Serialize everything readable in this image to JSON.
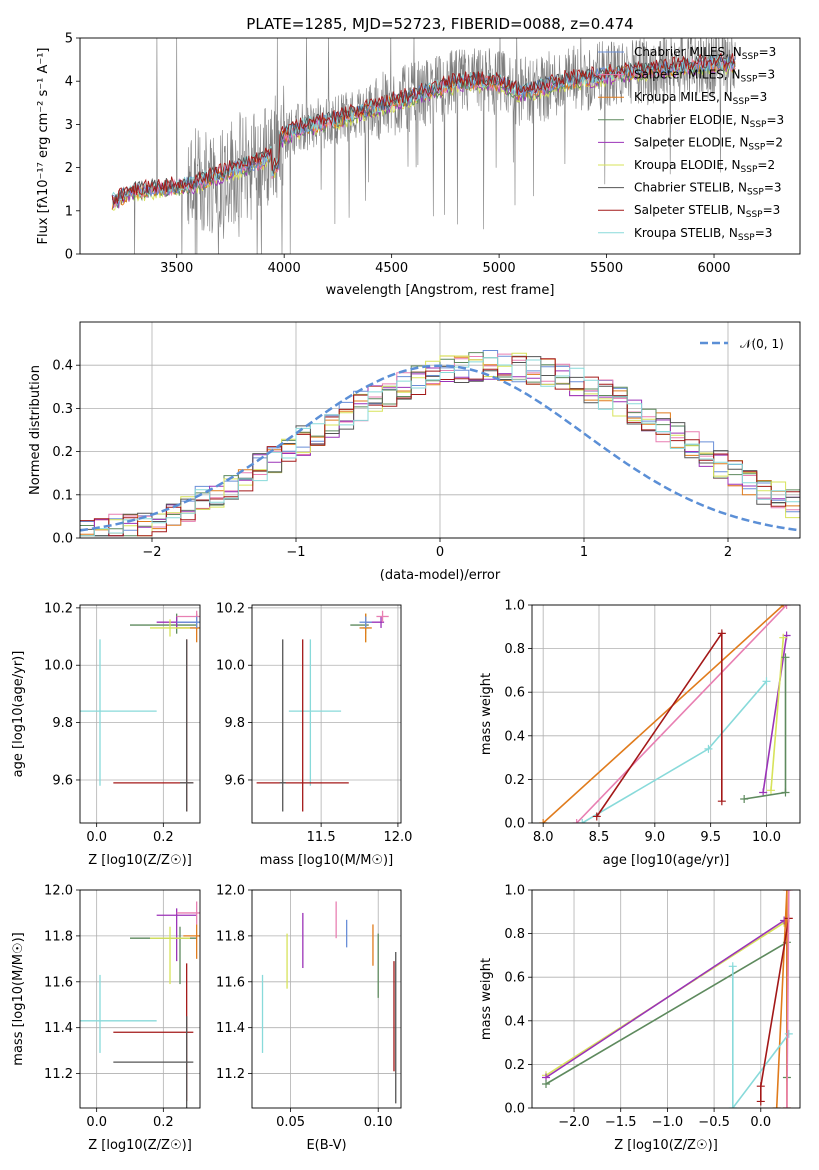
{
  "colors": {
    "chabrier_miles": "#6a8fd8",
    "salpeter_miles": "#e87fb2",
    "kroupa_miles": "#e07b1c",
    "chabrier_elodie": "#5e8a5e",
    "salpeter_elodie": "#9b33b8",
    "kroupa_elodie": "#d7e35a",
    "chabrier_stelib": "#555555",
    "salpeter_stelib": "#a31818",
    "kroupa_stelib": "#88dada",
    "normal": "#5b8fd6",
    "data": "#7f7f7f"
  },
  "chart_data": [
    {
      "id": "spectrum",
      "type": "line",
      "title": "PLATE=1285, MJD=52723, FIBERID=0088, z=0.474",
      "xlabel": "wavelength [Angstrom, rest frame]",
      "ylabel": "Flux [f$_\\lambda$10$^{-17}$ erg cm$^{-2}$ s$^{-1}$ A$^{-1}$]",
      "ylabel_text": "Flux [fλ10⁻¹⁷ erg cm⁻² s⁻¹ A⁻¹]",
      "xlim": [
        3050,
        6400
      ],
      "ylim": [
        0,
        5
      ],
      "xticks": [
        3500,
        4000,
        4500,
        5000,
        5500,
        6000
      ],
      "yticks": [
        0,
        1,
        2,
        3,
        4,
        5
      ],
      "grid": false,
      "legend_position": "top-right",
      "legend": [
        {
          "key": "chabrier_miles",
          "label": "Chabrier MILES, N",
          "sub": "SSP",
          "tail": "=3"
        },
        {
          "key": "salpeter_miles",
          "label": "Salpeter MILES, N",
          "sub": "SSP",
          "tail": "=3"
        },
        {
          "key": "kroupa_miles",
          "label": "Kroupa MILES, N",
          "sub": "SSP",
          "tail": "=3"
        },
        {
          "key": "chabrier_elodie",
          "label": "Chabrier ELODIE, N",
          "sub": "SSP",
          "tail": "=3"
        },
        {
          "key": "salpeter_elodie",
          "label": "Salpeter ELODIE, N",
          "sub": "SSP",
          "tail": "=2"
        },
        {
          "key": "kroupa_elodie",
          "label": "Kroupa ELODIE, N",
          "sub": "SSP",
          "tail": "=2"
        },
        {
          "key": "chabrier_stelib",
          "label": "Chabrier STELIB, N",
          "sub": "SSP",
          "tail": "=3"
        },
        {
          "key": "salpeter_stelib",
          "label": "Salpeter STELIB, N",
          "sub": "SSP",
          "tail": "=3"
        },
        {
          "key": "kroupa_stelib",
          "label": "Kroupa STELIB, N",
          "sub": "SSP",
          "tail": "=3"
        }
      ],
      "model_continuum": [
        [
          3200,
          1.2
        ],
        [
          3300,
          1.45
        ],
        [
          3400,
          1.5
        ],
        [
          3500,
          1.55
        ],
        [
          3600,
          1.65
        ],
        [
          3700,
          1.85
        ],
        [
          3800,
          2.0
        ],
        [
          3900,
          2.15
        ],
        [
          4000,
          2.75
        ],
        [
          4100,
          2.95
        ],
        [
          4200,
          3.05
        ],
        [
          4300,
          3.2
        ],
        [
          4400,
          3.35
        ],
        [
          4500,
          3.5
        ],
        [
          4600,
          3.65
        ],
        [
          4700,
          3.8
        ],
        [
          4800,
          3.95
        ],
        [
          4900,
          4.0
        ],
        [
          5000,
          3.95
        ],
        [
          5100,
          3.75
        ],
        [
          5200,
          3.85
        ],
        [
          5300,
          4.0
        ],
        [
          5400,
          4.05
        ],
        [
          5500,
          4.15
        ],
        [
          5600,
          4.2
        ],
        [
          5700,
          4.25
        ],
        [
          5800,
          4.3
        ],
        [
          5900,
          4.35
        ],
        [
          6000,
          4.4
        ],
        [
          6100,
          4.4
        ]
      ]
    },
    {
      "id": "residuals",
      "type": "histogram",
      "xlabel": "(data-model)/error",
      "ylabel": "Normed distribution",
      "xlim": [
        -2.5,
        2.5
      ],
      "ylim": [
        0,
        0.5
      ],
      "xticks": [
        -2,
        -1,
        0,
        1,
        2
      ],
      "yticks": [
        0.0,
        0.1,
        0.2,
        0.3,
        0.4
      ],
      "grid": true,
      "legend_position": "top-right",
      "legend_label": "𝒩(0, 1)",
      "bin_width": 0.1,
      "bin_start": -2.5,
      "reference": [
        0.012,
        0.016,
        0.021,
        0.028,
        0.036,
        0.046,
        0.058,
        0.072,
        0.087,
        0.104,
        0.122,
        0.141,
        0.161,
        0.182,
        0.203,
        0.225,
        0.246,
        0.267,
        0.287,
        0.306,
        0.324,
        0.34,
        0.354,
        0.367,
        0.378,
        0.387,
        0.393,
        0.397,
        0.399,
        0.399,
        0.396,
        0.391,
        0.383,
        0.373,
        0.361,
        0.347,
        0.331,
        0.314,
        0.295,
        0.275,
        0.255,
        0.234,
        0.213,
        0.192,
        0.171,
        0.151,
        0.131,
        0.113,
        0.096,
        0.08,
        0.066
      ]
    },
    {
      "id": "age_vs_Z",
      "type": "errorbar",
      "xlabel": "Z [log10(Z/Z☉)]",
      "ylabel": "age  [log10(age/yr)]",
      "xlim": [
        -0.05,
        0.31
      ],
      "ylim": [
        9.45,
        10.21
      ],
      "xticks": [
        0.0,
        0.2
      ],
      "yticks": [
        9.6,
        9.8,
        10.0,
        10.2
      ],
      "grid": true,
      "points": [
        {
          "key": "kroupa_stelib",
          "x": 0.01,
          "xerr": [
            0.22,
            0.17
          ],
          "y": 9.84,
          "yerr": [
            0.26,
            0.25
          ]
        },
        {
          "key": "salpeter_stelib",
          "x": 0.27,
          "xerr": [
            0.22,
            0.02
          ],
          "y": 9.59,
          "yerr": [
            0.1,
            0.5
          ]
        },
        {
          "key": "chabrier_stelib",
          "x": 0.27,
          "xerr": [
            0.02,
            0.02
          ],
          "y": 9.59,
          "yerr": [
            0.1,
            0.5
          ]
        },
        {
          "key": "chabrier_elodie",
          "x": 0.24,
          "xerr": [
            0.14,
            0.06
          ],
          "y": 10.14,
          "yerr": [
            0.03,
            0.04
          ]
        },
        {
          "key": "salpeter_elodie",
          "x": 0.24,
          "xerr": [
            0.06,
            0.06
          ],
          "y": 10.15,
          "yerr": [
            0.02,
            0.02
          ]
        },
        {
          "key": "kroupa_miles",
          "x": 0.3,
          "xerr": [
            0.06,
            0.01
          ],
          "y": 10.13,
          "yerr": [
            0.05,
            0.05
          ]
        },
        {
          "key": "salpeter_miles",
          "x": 0.3,
          "xerr": [
            0.06,
            0.01
          ],
          "y": 10.17,
          "yerr": [
            0.02,
            0.02
          ]
        },
        {
          "key": "kroupa_elodie",
          "x": 0.22,
          "xerr": [
            0.06,
            0.06
          ],
          "y": 10.13,
          "yerr": [
            0.03,
            0.03
          ]
        },
        {
          "key": "chabrier_miles",
          "x": 0.3,
          "xerr": [
            0.06,
            0.01
          ],
          "y": 10.15,
          "yerr": [
            0.02,
            0.02
          ]
        }
      ]
    },
    {
      "id": "age_vs_mass",
      "type": "errorbar",
      "xlabel": "mass [log10(M/M☉)]",
      "ylabel": "",
      "xlim": [
        11.05,
        12.02
      ],
      "ylim": [
        9.45,
        10.21
      ],
      "xticks": [
        11.5,
        12.0
      ],
      "yticks": [
        9.6,
        9.8,
        10.0,
        10.2
      ],
      "grid": true,
      "points": [
        {
          "key": "kroupa_stelib",
          "x": 11.43,
          "xerr": [
            0.14,
            0.2
          ],
          "y": 9.84,
          "yerr": [
            0.26,
            0.25
          ]
        },
        {
          "key": "salpeter_stelib",
          "x": 11.38,
          "xerr": [
            0.3,
            0.3
          ],
          "y": 9.59,
          "yerr": [
            0.1,
            0.5
          ]
        },
        {
          "key": "chabrier_stelib",
          "x": 11.25,
          "xerr": [
            0.02,
            0.02
          ],
          "y": 9.59,
          "yerr": [
            0.1,
            0.5
          ]
        },
        {
          "key": "chabrier_elodie",
          "x": 11.79,
          "xerr": [
            0.1,
            0.02
          ],
          "y": 10.14,
          "yerr": [
            0.03,
            0.04
          ]
        },
        {
          "key": "salpeter_elodie",
          "x": 11.89,
          "xerr": [
            0.1,
            0.02
          ],
          "y": 10.15,
          "yerr": [
            0.02,
            0.02
          ]
        },
        {
          "key": "kroupa_elodie",
          "x": 11.79,
          "xerr": [
            0.02,
            0.02
          ],
          "y": 10.13,
          "yerr": [
            0.05,
            0.05
          ]
        },
        {
          "key": "kroupa_miles",
          "x": 11.79,
          "xerr": [
            0.04,
            0.04
          ],
          "y": 10.13,
          "yerr": [
            0.05,
            0.05
          ]
        },
        {
          "key": "salpeter_miles",
          "x": 11.9,
          "xerr": [
            0.04,
            0.04
          ],
          "y": 10.17,
          "yerr": [
            0.02,
            0.02
          ]
        },
        {
          "key": "chabrier_miles",
          "x": 11.79,
          "xerr": [
            0.04,
            0.04
          ],
          "y": 10.15,
          "yerr": [
            0.02,
            0.02
          ]
        }
      ]
    },
    {
      "id": "weight_vs_age",
      "type": "line",
      "xlabel": "age  [log10(age/yr)]",
      "ylabel": "mass weight",
      "xlim": [
        7.9,
        10.3
      ],
      "ylim": [
        0,
        1
      ],
      "xticks": [
        8.0,
        8.5,
        9.0,
        9.5,
        10.0
      ],
      "yticks": [
        0.0,
        0.2,
        0.4,
        0.6,
        0.8,
        1.0
      ],
      "grid": true,
      "series": [
        {
          "key": "kroupa_miles",
          "points": [
            [
              8.0,
              0.0
            ],
            [
              10.15,
              1.0
            ]
          ]
        },
        {
          "key": "salpeter_miles",
          "points": [
            [
              8.3,
              0.0
            ],
            [
              10.18,
              1.0
            ]
          ]
        },
        {
          "key": "kroupa_stelib",
          "points": [
            [
              8.35,
              0.0
            ],
            [
              9.48,
              0.34
            ],
            [
              10.0,
              0.65
            ]
          ]
        },
        {
          "key": "salpeter_stelib",
          "points": [
            [
              8.48,
              0.03
            ],
            [
              9.6,
              0.87
            ],
            [
              9.6,
              0.1
            ]
          ]
        },
        {
          "key": "salpeter_elodie",
          "points": [
            [
              9.97,
              0.14
            ],
            [
              10.18,
              0.86
            ]
          ]
        },
        {
          "key": "kroupa_elodie",
          "points": [
            [
              10.04,
              0.15
            ],
            [
              10.15,
              0.85
            ]
          ]
        },
        {
          "key": "chabrier_elodie",
          "points": [
            [
              9.8,
              0.11
            ],
            [
              10.17,
              0.14
            ],
            [
              10.17,
              0.76
            ]
          ]
        }
      ]
    },
    {
      "id": "mass_vs_Z",
      "type": "errorbar",
      "xlabel": "Z [log10(Z/Z☉)]",
      "ylabel": "mass [log10(M/M☉)]",
      "xlim": [
        -0.05,
        0.31
      ],
      "ylim": [
        11.05,
        12.0
      ],
      "xticks": [
        0.0,
        0.2
      ],
      "yticks": [
        11.2,
        11.4,
        11.6,
        11.8,
        12.0
      ],
      "grid": true,
      "points": [
        {
          "key": "kroupa_stelib",
          "x": 0.01,
          "xerr": [
            0.22,
            0.17
          ],
          "y": 11.43,
          "yerr": [
            0.14,
            0.2
          ]
        },
        {
          "key": "salpeter_stelib",
          "x": 0.27,
          "xerr": [
            0.22,
            0.02
          ],
          "y": 11.38,
          "yerr": [
            0.3,
            0.3
          ]
        },
        {
          "key": "chabrier_stelib",
          "x": 0.27,
          "xerr": [
            0.22,
            0.02
          ],
          "y": 11.25,
          "yerr": [
            0.2,
            0.2
          ]
        },
        {
          "key": "chabrier_elodie",
          "x": 0.25,
          "xerr": [
            0.15,
            0.05
          ],
          "y": 11.79,
          "yerr": [
            0.2,
            0.05
          ]
        },
        {
          "key": "salpeter_elodie",
          "x": 0.24,
          "xerr": [
            0.06,
            0.06
          ],
          "y": 11.89,
          "yerr": [
            0.2,
            0.03
          ]
        },
        {
          "key": "kroupa_elodie",
          "x": 0.22,
          "xerr": [
            0.06,
            0.06
          ],
          "y": 11.79,
          "yerr": [
            0.2,
            0.05
          ]
        },
        {
          "key": "kroupa_miles",
          "x": 0.3,
          "xerr": [
            0.04,
            0.01
          ],
          "y": 11.8,
          "yerr": [
            0.1,
            0.05
          ]
        },
        {
          "key": "salpeter_miles",
          "x": 0.3,
          "xerr": [
            0.06,
            0.01
          ],
          "y": 11.9,
          "yerr": [
            0.05,
            0.05
          ]
        }
      ]
    },
    {
      "id": "mass_vs_ebv",
      "type": "errorbar",
      "xlabel": "E(B-V)",
      "ylabel": "",
      "xlim": [
        0.028,
        0.113
      ],
      "ylim": [
        11.05,
        12.0
      ],
      "xticks": [
        0.05,
        0.1
      ],
      "yticks": [
        11.2,
        11.4,
        11.6,
        11.8,
        12.0
      ],
      "grid": true,
      "points": [
        {
          "key": "kroupa_stelib",
          "x": 0.034,
          "y": 11.46,
          "yerr": [
            0.17,
            0.17
          ]
        },
        {
          "key": "kroupa_elodie",
          "x": 0.048,
          "y": 11.69,
          "yerr": [
            0.12,
            0.12
          ]
        },
        {
          "key": "salpeter_elodie",
          "x": 0.057,
          "y": 11.78,
          "yerr": [
            0.12,
            0.12
          ]
        },
        {
          "key": "salpeter_miles",
          "x": 0.076,
          "y": 11.87,
          "yerr": [
            0.08,
            0.08
          ]
        },
        {
          "key": "chabrier_miles",
          "x": 0.082,
          "y": 11.81,
          "yerr": [
            0.06,
            0.06
          ]
        },
        {
          "key": "kroupa_miles",
          "x": 0.097,
          "y": 11.76,
          "yerr": [
            0.09,
            0.09
          ]
        },
        {
          "key": "chabrier_elodie",
          "x": 0.1,
          "y": 11.67,
          "yerr": [
            0.14,
            0.14
          ]
        },
        {
          "key": "salpeter_stelib",
          "x": 0.109,
          "y": 11.45,
          "yerr": [
            0.24,
            0.24
          ]
        },
        {
          "key": "chabrier_stelib",
          "x": 0.11,
          "y": 11.4,
          "yerr": [
            0.33,
            0.33
          ]
        }
      ]
    },
    {
      "id": "weight_vs_Z",
      "type": "line",
      "xlabel": "Z [log10(Z/Z☉)]",
      "ylabel": "mass weight",
      "xlim": [
        -2.45,
        0.42
      ],
      "ylim": [
        0,
        1
      ],
      "xticks": [
        -2.0,
        -1.5,
        -1.0,
        -0.5,
        0.0
      ],
      "yticks": [
        0.0,
        0.2,
        0.4,
        0.6,
        0.8,
        1.0
      ],
      "grid": true,
      "series": [
        {
          "key": "kroupa_elodie",
          "points": [
            [
              -2.3,
              0.15
            ],
            [
              0.25,
              0.85
            ]
          ]
        },
        {
          "key": "salpeter_elodie",
          "points": [
            [
              -2.3,
              0.14
            ],
            [
              0.25,
              0.86
            ]
          ]
        },
        {
          "key": "chabrier_elodie",
          "points": [
            [
              -2.3,
              0.11
            ],
            [
              0.28,
              0.76
            ],
            [
              0.28,
              0.14
            ]
          ]
        },
        {
          "key": "kroupa_miles",
          "points": [
            [
              0.17,
              0.0
            ],
            [
              0.28,
              1.0
            ],
            [
              0.28,
              0.0
            ]
          ]
        },
        {
          "key": "kroupa_stelib",
          "points": [
            [
              -0.3,
              0.65
            ],
            [
              -0.3,
              0.0
            ],
            [
              0.3,
              0.34
            ]
          ]
        },
        {
          "key": "salpeter_stelib",
          "points": [
            [
              0.0,
              0.03
            ],
            [
              0.0,
              0.1
            ],
            [
              0.3,
              0.87
            ]
          ]
        },
        {
          "key": "salpeter_miles",
          "points": [
            [
              0.28,
              0.0
            ],
            [
              0.3,
              1.0
            ]
          ]
        }
      ]
    }
  ]
}
